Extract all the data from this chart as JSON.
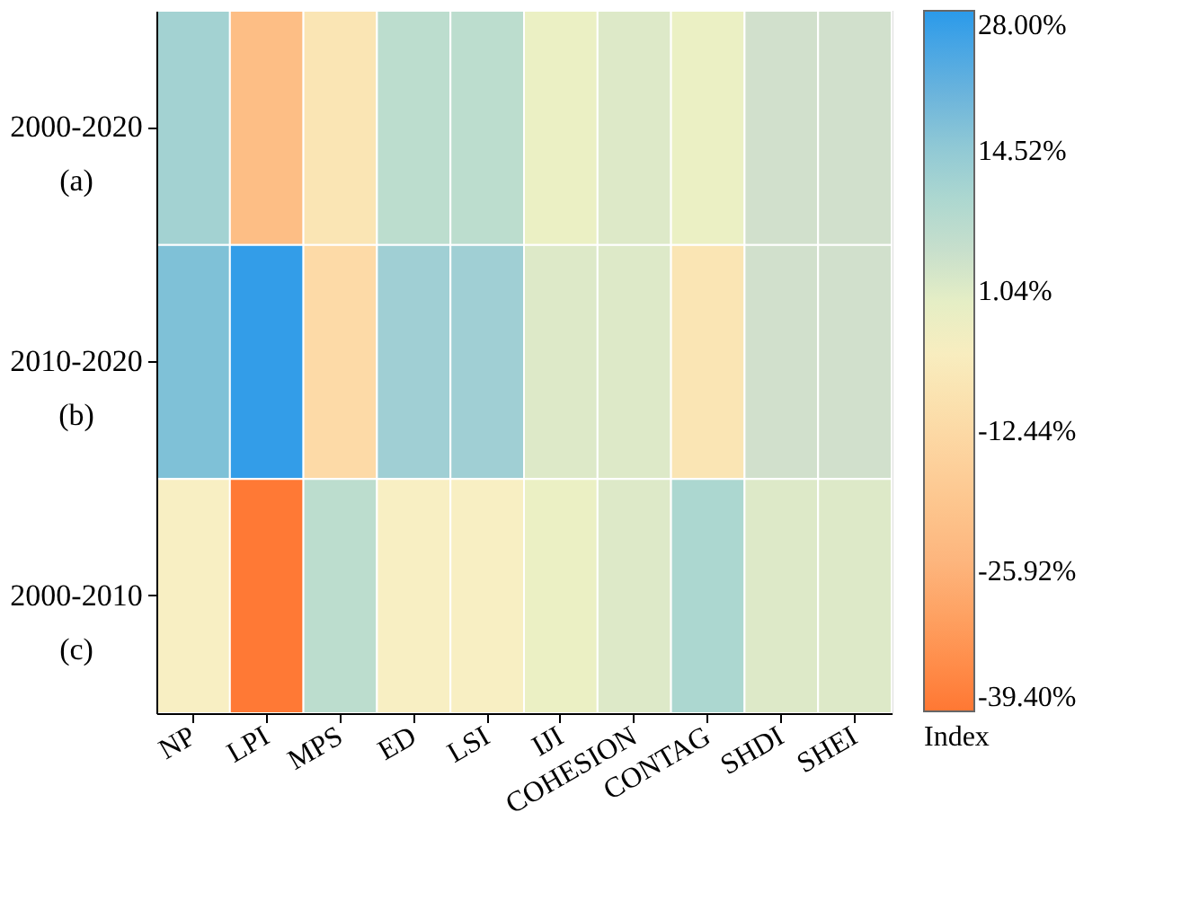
{
  "chart_data": {
    "type": "heatmap",
    "clabel": "Index",
    "categories": [
      "NP",
      "LPI",
      "MPS",
      "ED",
      "LSI",
      "IJI",
      "COHESION",
      "CONTAG",
      "SHDI",
      "SHEI"
    ],
    "y_categories": [
      "2000-2020 (a)",
      "2010-2020 (b)",
      "2000-2010 (c)"
    ],
    "cells": [
      [
        12,
        -22,
        -8,
        7,
        7,
        -1,
        1,
        -1,
        3,
        3
      ],
      [
        17,
        27,
        -12,
        13,
        13,
        1,
        1,
        -8,
        3,
        3
      ],
      [
        -4,
        -39,
        7,
        -4,
        -4,
        -1,
        1,
        10,
        1,
        1
      ]
    ],
    "clim": [
      -39.4,
      28
    ],
    "cticks": [
      {
        "value": 28,
        "label": "28.00%"
      },
      {
        "value": 14.52,
        "label": "14.52%"
      },
      {
        "value": 1.04,
        "label": "1.04%"
      },
      {
        "value": -12.44,
        "label": "-12.44%"
      },
      {
        "value": -25.92,
        "label": "-25.92%"
      },
      {
        "value": -39.4,
        "label": "-39.40%"
      }
    ]
  }
}
